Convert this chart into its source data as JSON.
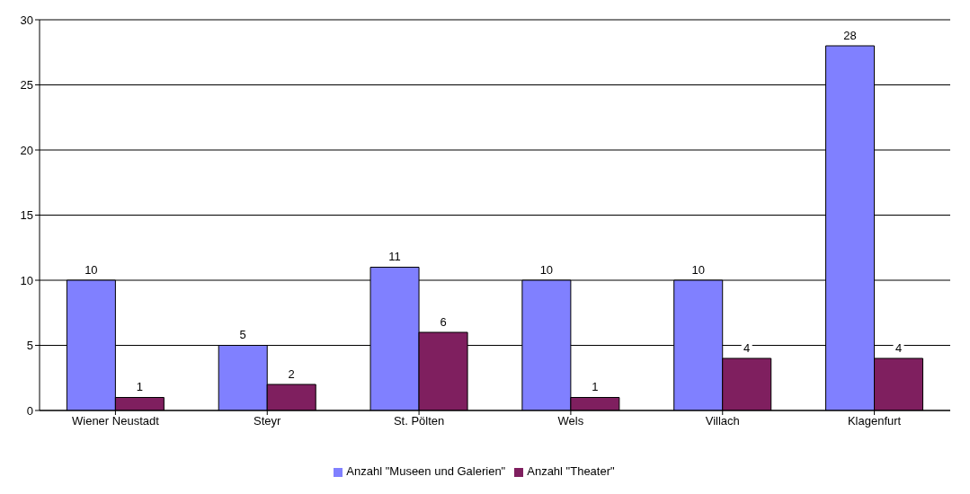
{
  "chart_data": {
    "type": "bar",
    "categories": [
      "Wiener Neustadt",
      "Steyr",
      "St. Pölten",
      "Wels",
      "Villach",
      "Klagenfurt"
    ],
    "series": [
      {
        "name": "Anzahl \"Museen und Galerien\"",
        "color": "#8080ff",
        "values": [
          10,
          5,
          11,
          10,
          10,
          28
        ]
      },
      {
        "name": "Anzahl \"Theater\"",
        "color": "#7f1f5f",
        "values": [
          1,
          2,
          6,
          1,
          4,
          4
        ]
      }
    ],
    "ylim": [
      0,
      30
    ],
    "yticks": [
      0,
      5,
      10,
      15,
      20,
      25,
      30
    ],
    "grid": "y",
    "legend": "bottom",
    "data_labels": true
  }
}
